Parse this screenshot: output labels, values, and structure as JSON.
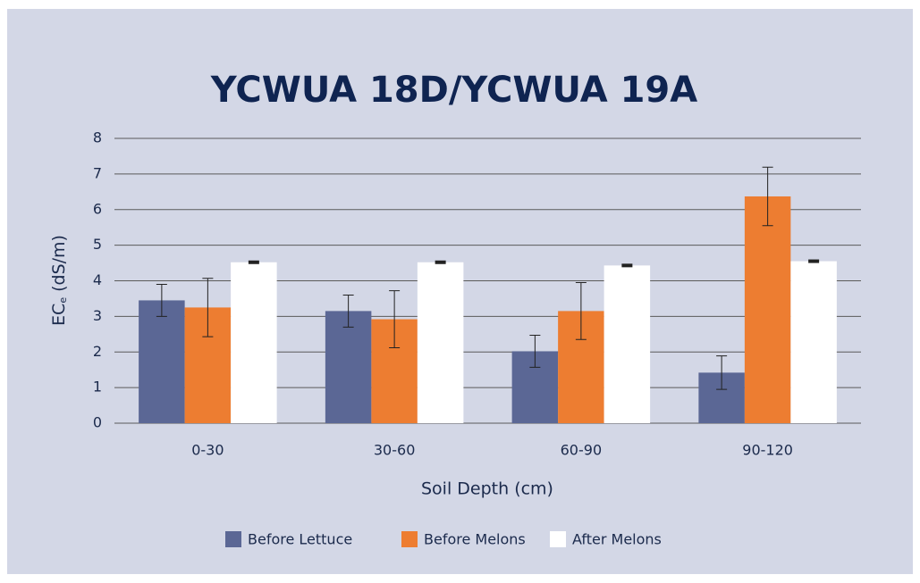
{
  "chart_data": {
    "type": "bar",
    "title": "YCWUA 18D/YCWUA 19A",
    "x_label": "Soil Depth (cm)",
    "y_label": [
      "EC",
      "e",
      "(dS/m)"
    ],
    "categories": [
      "0-30",
      "30-60",
      "60-90",
      "90-120"
    ],
    "series": [
      {
        "name": "Before Lettuce",
        "color": "#5b6795",
        "values": [
          3.45,
          3.15,
          2.02,
          1.42
        ],
        "errors": [
          0.45,
          0.45,
          0.45,
          0.47
        ]
      },
      {
        "name": "Before Melons",
        "color": "#ed7d31",
        "values": [
          3.25,
          2.92,
          3.15,
          6.37
        ],
        "errors": [
          0.82,
          0.8,
          0.8,
          0.82
        ]
      },
      {
        "name": "After Melons",
        "color": "#ffffff",
        "values": [
          4.52,
          4.52,
          4.43,
          4.55
        ],
        "errors": [
          0.03,
          0.03,
          0.03,
          0.03
        ]
      }
    ],
    "ylim": [
      0,
      8
    ],
    "yticks": [
      0,
      1,
      2,
      3,
      4,
      5,
      6,
      7,
      8
    ],
    "grid": true,
    "legend": "bottom"
  }
}
